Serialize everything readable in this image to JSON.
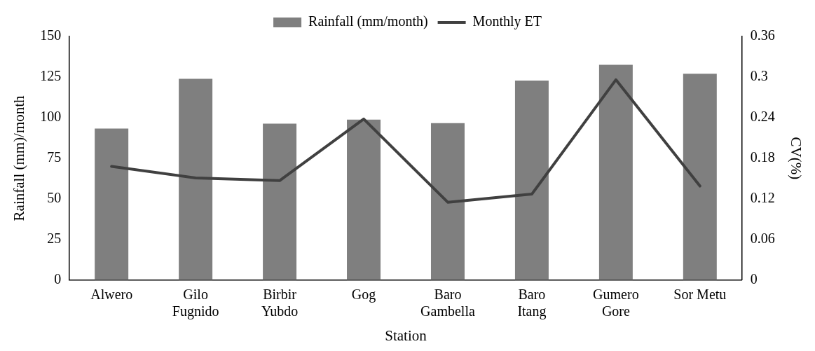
{
  "chart_data": {
    "type": "bar",
    "categories": [
      "Alwero",
      "Gilo Fugnido",
      "Birbir Yubdo",
      "Gog",
      "Baro Gambella",
      "Baro Itang",
      "Gumero Gore",
      "Sor Metu"
    ],
    "series": [
      {
        "name": "Rainfall (mm/month)",
        "color": "#7f7f7f",
        "values": [
          93.3,
          123.9,
          96.3,
          98.8,
          96.6,
          122.8,
          132.5,
          127.0
        ]
      },
      {
        "name": "Monthly ET",
        "type": "line",
        "axis": "y2",
        "color": "#404040",
        "values": [
          0.168,
          0.151,
          0.147,
          0.238,
          0.115,
          0.127,
          0.296,
          0.139
        ]
      }
    ],
    "xlabel": "Station",
    "ylabel": "Rainfall (mm)/month",
    "y2label": "CV(%)",
    "ylim": [
      0,
      150
    ],
    "yticks": [
      0,
      25,
      50,
      75,
      100,
      125,
      150
    ],
    "y2lim": [
      0,
      0.36
    ],
    "y2ticks": [
      0,
      0.06,
      0.12,
      0.18,
      0.24,
      0.3,
      0.36
    ],
    "grid": false,
    "legend": "top",
    "marker": "none",
    "line_style": "solid"
  }
}
